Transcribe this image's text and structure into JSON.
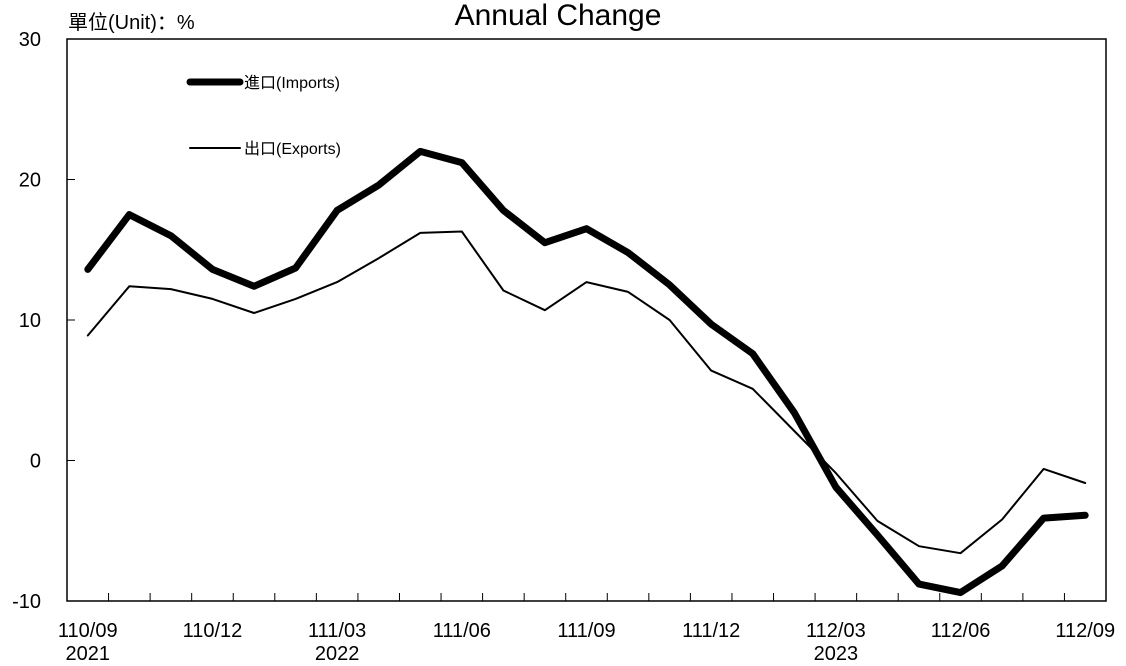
{
  "chart_data": {
    "type": "line",
    "title": "Annual Change",
    "unit_label": "單位(Unit)：%",
    "ylim": [
      -10,
      30
    ],
    "yticks": [
      -10,
      0,
      10,
      20,
      30
    ],
    "grid": false,
    "legend_position": "top-left",
    "x": [
      "110/09",
      "110/10",
      "110/11",
      "110/12",
      "111/01",
      "111/02",
      "111/03",
      "111/04",
      "111/05",
      "111/06",
      "111/07",
      "111/08",
      "111/09",
      "111/10",
      "111/11",
      "111/12",
      "112/01",
      "112/02",
      "112/03",
      "112/04",
      "112/05",
      "112/06",
      "112/07",
      "112/08",
      "112/09"
    ],
    "xtick_labels": [
      {
        "top": "110/09",
        "bottom": "2021"
      },
      {
        "top": "110/12",
        "bottom": ""
      },
      {
        "top": "111/03",
        "bottom": "2022"
      },
      {
        "top": "111/06",
        "bottom": ""
      },
      {
        "top": "111/09",
        "bottom": ""
      },
      {
        "top": "111/12",
        "bottom": ""
      },
      {
        "top": "112/03",
        "bottom": "2023"
      },
      {
        "top": "112/06",
        "bottom": ""
      },
      {
        "top": "112/09",
        "bottom": ""
      }
    ],
    "series": [
      {
        "name": "進口(Imports)",
        "color": "#000000",
        "weight": "thick",
        "values": [
          13.6,
          17.5,
          16.0,
          13.6,
          12.4,
          13.7,
          17.8,
          19.6,
          22.0,
          21.2,
          17.8,
          15.5,
          16.5,
          14.8,
          12.5,
          9.7,
          7.6,
          3.4,
          -1.9,
          -5.3,
          -8.8,
          -9.4,
          -7.5,
          -4.1,
          -3.9
        ]
      },
      {
        "name": "出口(Exports)",
        "color": "#000000",
        "weight": "thin",
        "values": [
          8.9,
          12.4,
          12.2,
          11.5,
          10.5,
          11.5,
          12.7,
          14.4,
          16.2,
          16.3,
          12.1,
          10.7,
          12.7,
          12.0,
          10.0,
          6.4,
          5.1,
          2.1,
          -0.9,
          -4.3,
          -6.1,
          -6.6,
          -4.2,
          -0.6,
          -1.6
        ]
      }
    ]
  }
}
